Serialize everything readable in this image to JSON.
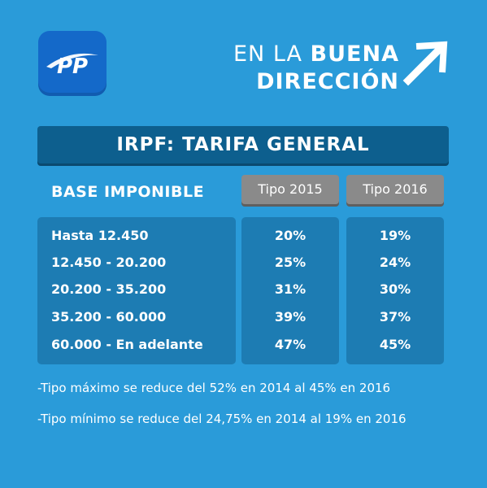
{
  "logo": {
    "text": "PP"
  },
  "slogan": {
    "line1_thin": "EN LA ",
    "line1_bold": "BUENA",
    "line2_bold": "DIRECCIÓN",
    "icon": "arrow-up-right-icon"
  },
  "title": "IRPF: TARIFA GENERAL",
  "table": {
    "base_header": "BASE IMPONIBLE",
    "year_headers": [
      "Tipo 2015",
      "Tipo 2016"
    ],
    "rows": [
      {
        "base": "Hasta 12.450",
        "t2015": "20%",
        "t2016": "19%"
      },
      {
        "base": "12.450 - 20.200",
        "t2015": "25%",
        "t2016": "24%"
      },
      {
        "base": "20.200 - 35.200",
        "t2015": "31%",
        "t2016": "30%"
      },
      {
        "base": "35.200 - 60.000",
        "t2015": "39%",
        "t2016": "37%"
      },
      {
        "base": "60.000 - En adelante",
        "t2015": "47%",
        "t2016": "45%"
      }
    ]
  },
  "notes": [
    "-Tipo máximo se reduce del 52% en 2014 al 45% en 2016",
    "-Tipo mínimo se reduce del 24,75% en 2014 al 19% en 2016"
  ],
  "colors": {
    "background": "#2a9bd9",
    "panel": "#1d7cb3",
    "title_bar": "#0d5f8e",
    "logo": "#1469c9",
    "tab": "#8a8a8a"
  }
}
